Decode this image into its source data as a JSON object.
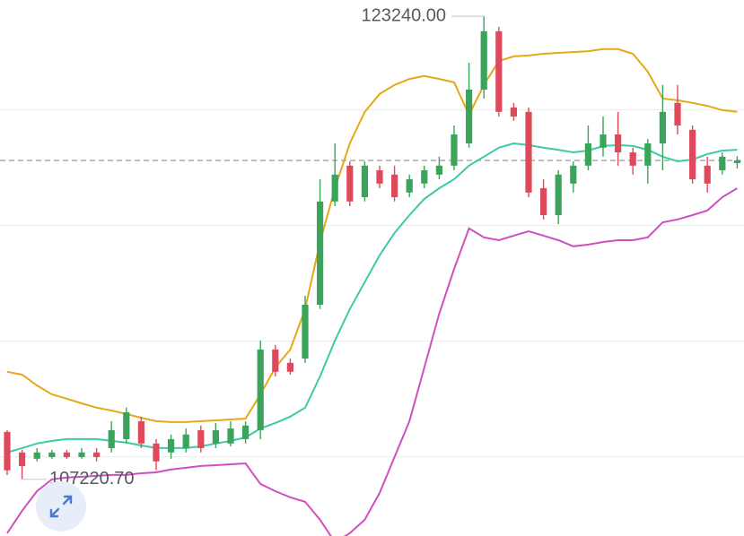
{
  "chart_data": {
    "type": "candlestick",
    "ylim": [
      105260,
      123800
    ],
    "gridlines": [
      120000,
      116000,
      112000,
      108000
    ],
    "current_price": 118250,
    "up_color": "#3aa55a",
    "down_color": "#de4a5c",
    "open": [
      108860,
      108150,
      107930,
      107990,
      108150,
      107990,
      108150,
      108300,
      108610,
      109230,
      108460,
      108150,
      108300,
      108920,
      108460,
      108460,
      108610,
      108920,
      111710,
      111250,
      111400,
      113260,
      116830,
      118070,
      116980,
      117910,
      117760,
      117140,
      117450,
      117760,
      118070,
      118840,
      120700,
      122720,
      120080,
      119930,
      117290,
      116360,
      117450,
      118070,
      118690,
      119150,
      118530,
      118070,
      118840,
      120240,
      119310,
      118070,
      117910,
      118160
    ],
    "high": [
      108920,
      108240,
      108300,
      108240,
      108240,
      108300,
      108300,
      109230,
      109700,
      109390,
      108610,
      108770,
      108980,
      109080,
      109170,
      109230,
      109230,
      112020,
      111870,
      111400,
      113570,
      117600,
      118840,
      118220,
      118220,
      118070,
      118070,
      117760,
      118070,
      118380,
      119460,
      121630,
      123240,
      122870,
      120240,
      120080,
      117600,
      117910,
      118220,
      119460,
      119770,
      119930,
      118690,
      118990,
      120860,
      120860,
      119460,
      118380,
      118530,
      118400
    ],
    "low": [
      107370,
      107220.7,
      107840,
      107930,
      107930,
      107930,
      107840,
      108150,
      108460,
      108300,
      107530,
      107930,
      108150,
      108150,
      108300,
      108360,
      108460,
      108610,
      110780,
      110840,
      111250,
      113110,
      116670,
      116670,
      116830,
      117290,
      116830,
      116980,
      117290,
      117600,
      117910,
      118690,
      120390,
      119770,
      119620,
      116980,
      116210,
      116050,
      117140,
      117910,
      118380,
      118070,
      117760,
      117450,
      117910,
      119150,
      117450,
      117140,
      117760,
      117970
    ],
    "close": [
      107530,
      107680,
      108150,
      108150,
      107990,
      108150,
      107990,
      108920,
      109540,
      108460,
      107840,
      108610,
      108770,
      108300,
      108920,
      108980,
      109080,
      111710,
      110940,
      110940,
      113260,
      116830,
      117760,
      116830,
      118070,
      117450,
      116980,
      117600,
      117910,
      118070,
      119150,
      120700,
      122720,
      119930,
      119770,
      117140,
      116360,
      117760,
      118070,
      118840,
      119150,
      118530,
      118070,
      118840,
      119930,
      119460,
      117600,
      117450,
      118380,
      118250
    ],
    "series": [
      {
        "color": "#e6a817",
        "values": [
          110940,
          110840,
          110470,
          110160,
          110010,
          109850,
          109700,
          109600,
          109480,
          109350,
          109230,
          109200,
          109200,
          109230,
          109260,
          109290,
          109320,
          110160,
          111090,
          111710,
          113110,
          115430,
          117290,
          118840,
          119930,
          120550,
          120860,
          121070,
          121170,
          121070,
          120950,
          119830,
          120860,
          121690,
          121850,
          121880,
          121940,
          121970,
          122000,
          122030,
          122100,
          122100,
          121940,
          121320,
          120390,
          120330,
          120240,
          120140,
          119990,
          119930
        ]
      },
      {
        "color": "#3cc9a9",
        "values": [
          108150,
          108300,
          108460,
          108550,
          108610,
          108610,
          108610,
          108550,
          108490,
          108390,
          108300,
          108300,
          108300,
          108360,
          108460,
          108550,
          108670,
          108980,
          109170,
          109390,
          109700,
          110780,
          112020,
          113110,
          114040,
          114970,
          115740,
          116360,
          116920,
          117290,
          117600,
          118070,
          118380,
          118690,
          118840,
          118780,
          118690,
          118620,
          118530,
          118590,
          118750,
          118780,
          118750,
          118620,
          118380,
          118220,
          118280,
          118470,
          118590,
          118620
        ]
      },
      {
        "color": "#d04fbe",
        "values": [
          105360,
          106130,
          106810,
          107220,
          107280,
          107310,
          107340,
          107370,
          107370,
          107430,
          107460,
          107560,
          107620,
          107680,
          107710,
          107740,
          107770,
          107060,
          106810,
          106600,
          106440,
          105820,
          105050,
          105360,
          105820,
          106750,
          107990,
          109230,
          111090,
          112950,
          114500,
          115900,
          115590,
          115490,
          115650,
          115800,
          115650,
          115490,
          115280,
          115340,
          115430,
          115490,
          115490,
          115590,
          116110,
          116210,
          116360,
          116520,
          116980,
          117290
        ]
      }
    ],
    "annotations": [
      {
        "value": 123240,
        "label": "123240.00"
      },
      {
        "value": 107220.7,
        "label": "107220.70"
      }
    ]
  }
}
